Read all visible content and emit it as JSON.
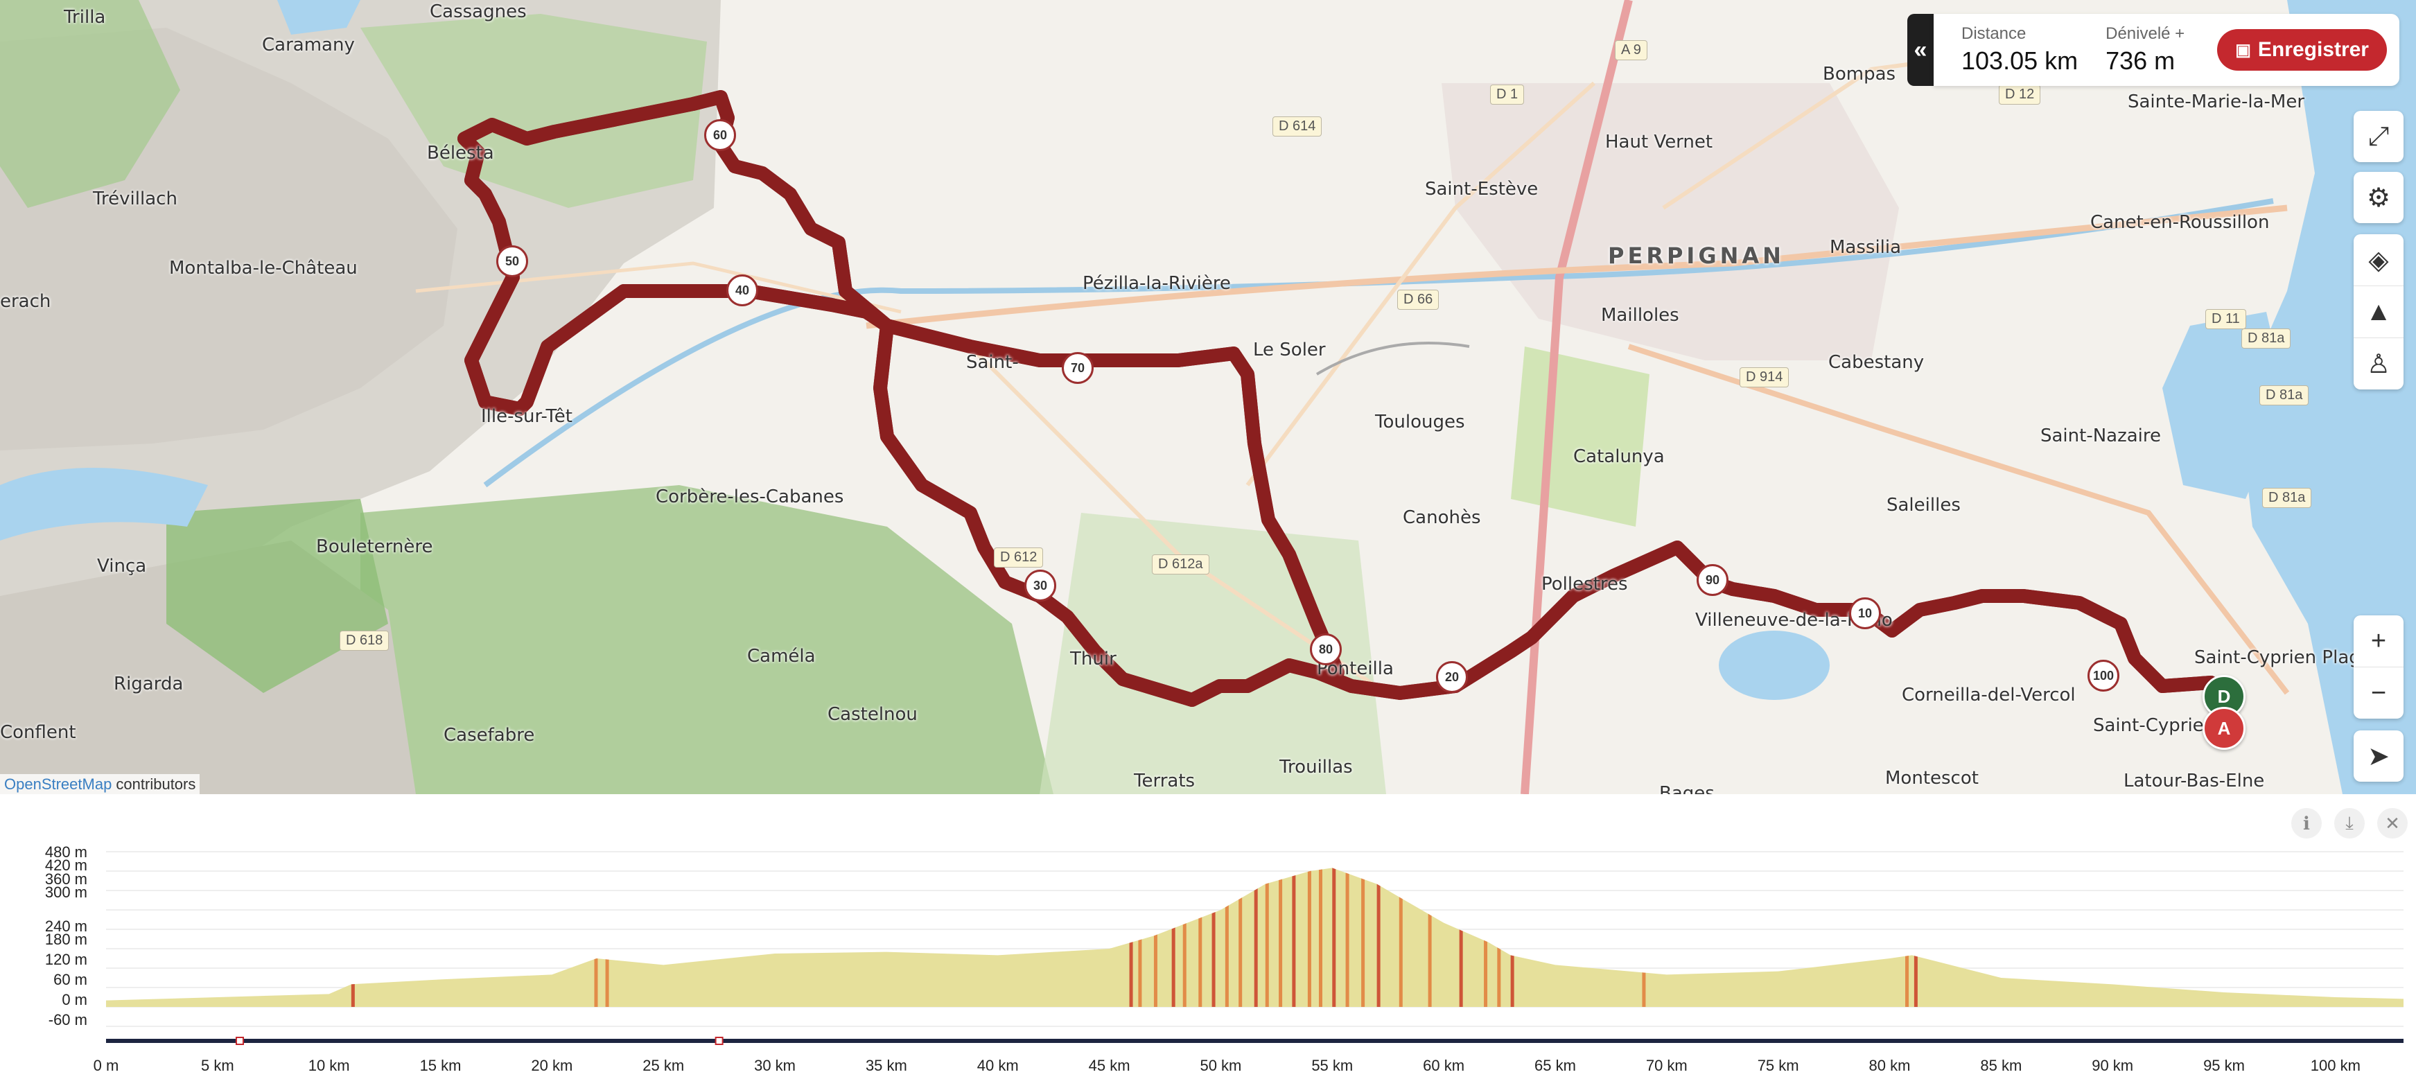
{
  "stats": {
    "distance_label": "Distance",
    "distance_value": "103.05 km",
    "elevation_label": "Dénivelé +",
    "elevation_value": "736 m",
    "save_label": "Enregistrer"
  },
  "map": {
    "attribution_link": "OpenStreetMap",
    "attribution_text": " contributors",
    "city": "PERPIGNAN",
    "places": [
      "Trilla",
      "Cassagnes",
      "Caramany",
      "Bélesta",
      "Trévillach",
      "Montalba-le-Château",
      "erach",
      "Ille-sur-Têt",
      "Corbère-les-Cabanes",
      "Bouleternère",
      "Vinça",
      "Rigarda",
      "Conflent",
      "Casefabre",
      "Caméla",
      "Castelnou",
      "Thuir",
      "Terrats",
      "Trouillas",
      "Saint-",
      "Le Soler",
      "Pézilla-la-Rivière",
      "Saint-Estève",
      "Haut Vernet",
      "Bompas",
      "Sainte-Marie-la-Mer",
      "Canet-en-Roussillon",
      "Massilia",
      "Mailloles",
      "Cabestany",
      "Toulouges",
      "Canohès",
      "Catalunya",
      "Saint-Nazaire",
      "Saleilles",
      "Pollestres",
      "Villeneuve-de-la-Raho",
      "Corneilla-del-Vercol",
      "Montescot",
      "Saint-Cyprien Plage",
      "Saint-Cyprien",
      "Latour-Bas-Elne",
      "Bages",
      "Ponteilla"
    ],
    "roads": [
      "A 9",
      "D 614",
      "D 1",
      "D 12",
      "D 66",
      "D 914",
      "D 11",
      "D 81a",
      "D 81a",
      "D 81a",
      "D 612a",
      "D 612",
      "D 618"
    ],
    "km_markers": [
      "10",
      "20",
      "30",
      "40",
      "50",
      "60",
      "70",
      "80",
      "90",
      "100"
    ],
    "start_marker": "D",
    "end_marker": "A"
  },
  "elevation": {
    "y_ticks": [
      "480 m",
      "420 m",
      "360 m",
      "300 m",
      "240 m",
      "180 m",
      "120 m",
      "60 m",
      "0 m",
      "-60 m"
    ],
    "x_ticks": [
      "0 m",
      "5 km",
      "10 km",
      "15 km",
      "20 km",
      "25 km",
      "30 km",
      "35 km",
      "40 km",
      "45 km",
      "50 km",
      "55 km",
      "60 km",
      "65 km",
      "70 km",
      "75 km",
      "80 km",
      "85 km",
      "90 km",
      "95 km",
      "100 km"
    ],
    "profile": {
      "x_km": [
        0,
        5,
        10,
        11,
        15,
        20,
        22,
        25,
        30,
        35,
        40,
        45,
        47,
        50,
        52,
        54,
        55,
        57,
        60,
        62,
        63,
        65,
        70,
        75,
        80,
        81,
        85,
        90,
        95,
        100,
        103.05
      ],
      "elev_m": [
        20,
        30,
        40,
        70,
        85,
        100,
        150,
        130,
        165,
        170,
        160,
        180,
        220,
        300,
        380,
        420,
        430,
        380,
        260,
        200,
        160,
        130,
        100,
        110,
        150,
        160,
        90,
        70,
        45,
        30,
        25
      ]
    },
    "colors": {
      "fill": "#e6e09b",
      "steep": "#e07b39",
      "very_steep": "#c93c26"
    }
  }
}
